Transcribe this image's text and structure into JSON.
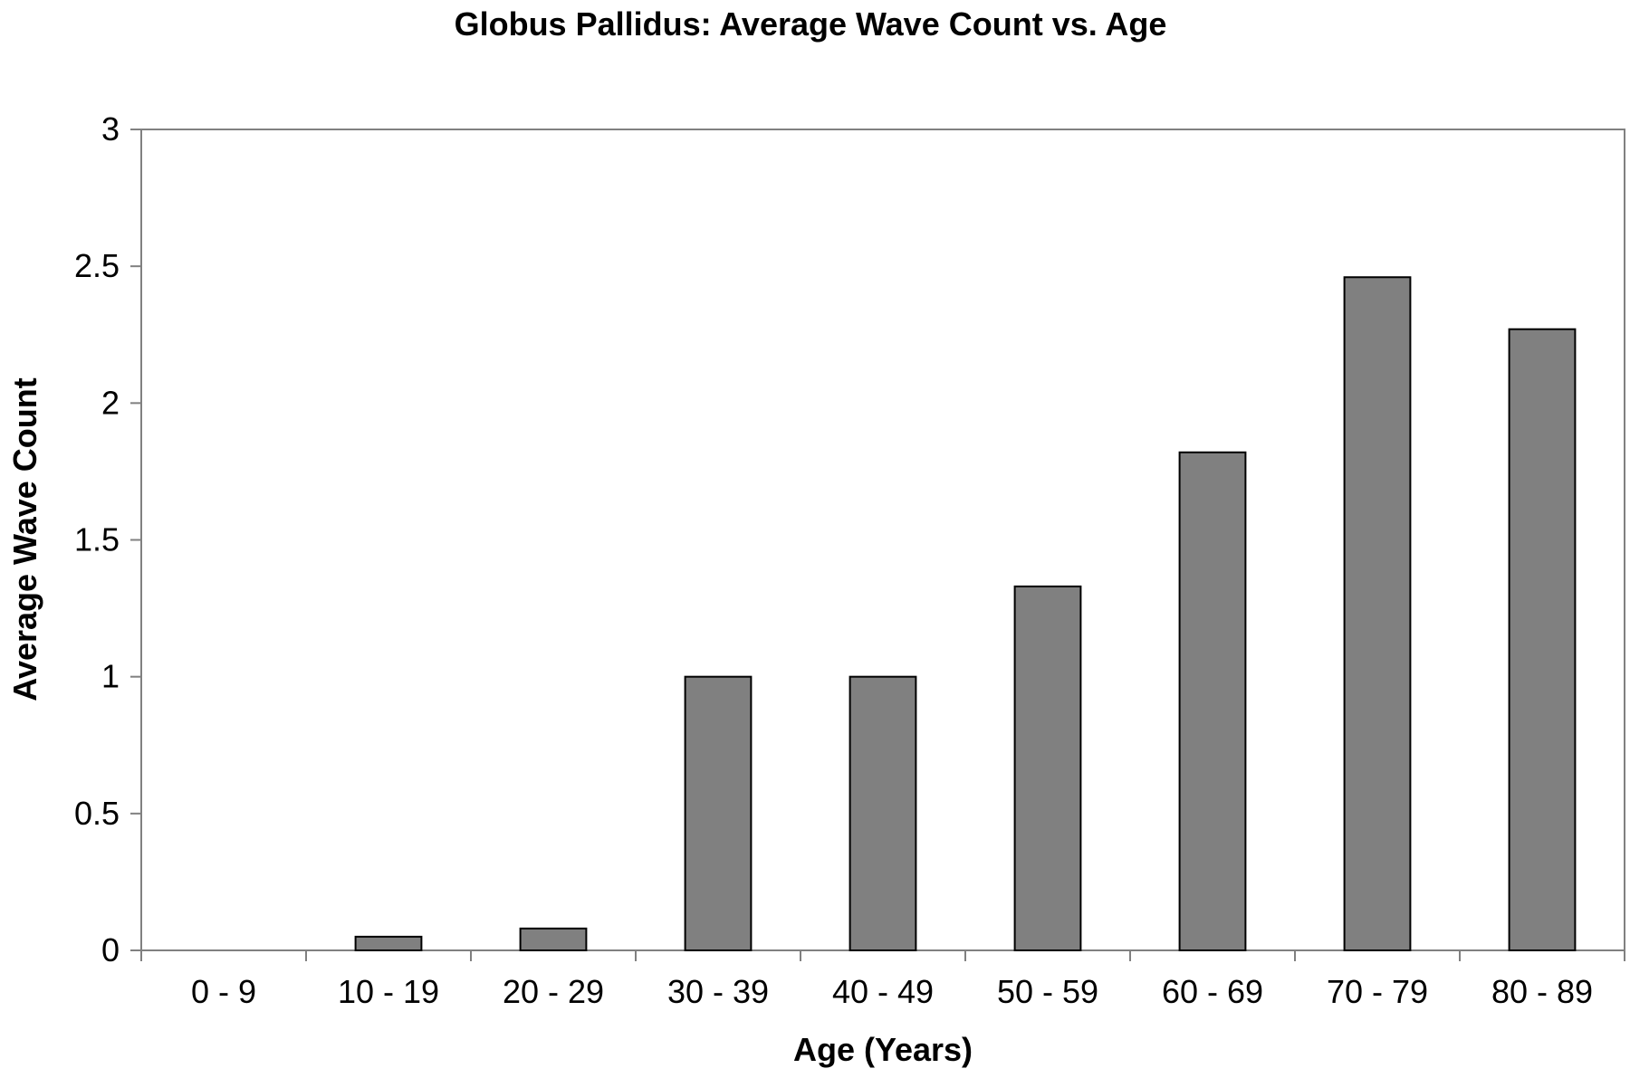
{
  "chart_data": {
    "type": "bar",
    "title": "Globus Pallidus:  Average Wave Count vs. Age",
    "xlabel": "Age (Years)",
    "ylabel": "Average Wave Count",
    "categories": [
      "0 - 9",
      "10 - 19",
      "20 - 29",
      "30 - 39",
      "40 - 49",
      "50 - 59",
      "60 - 69",
      "70 - 79",
      "80 - 89"
    ],
    "values": [
      0,
      0.05,
      0.08,
      1.0,
      1.0,
      1.33,
      1.82,
      2.46,
      2.27
    ],
    "ylim": [
      0,
      3
    ],
    "yticks": [
      "0",
      "0.5",
      "1",
      "1.5",
      "2",
      "2.5",
      "3"
    ],
    "grid": false,
    "colors": {
      "bar_fill": "#808080",
      "bar_stroke": "#000000",
      "axis": "#808080",
      "plot_border": "#808080"
    }
  }
}
